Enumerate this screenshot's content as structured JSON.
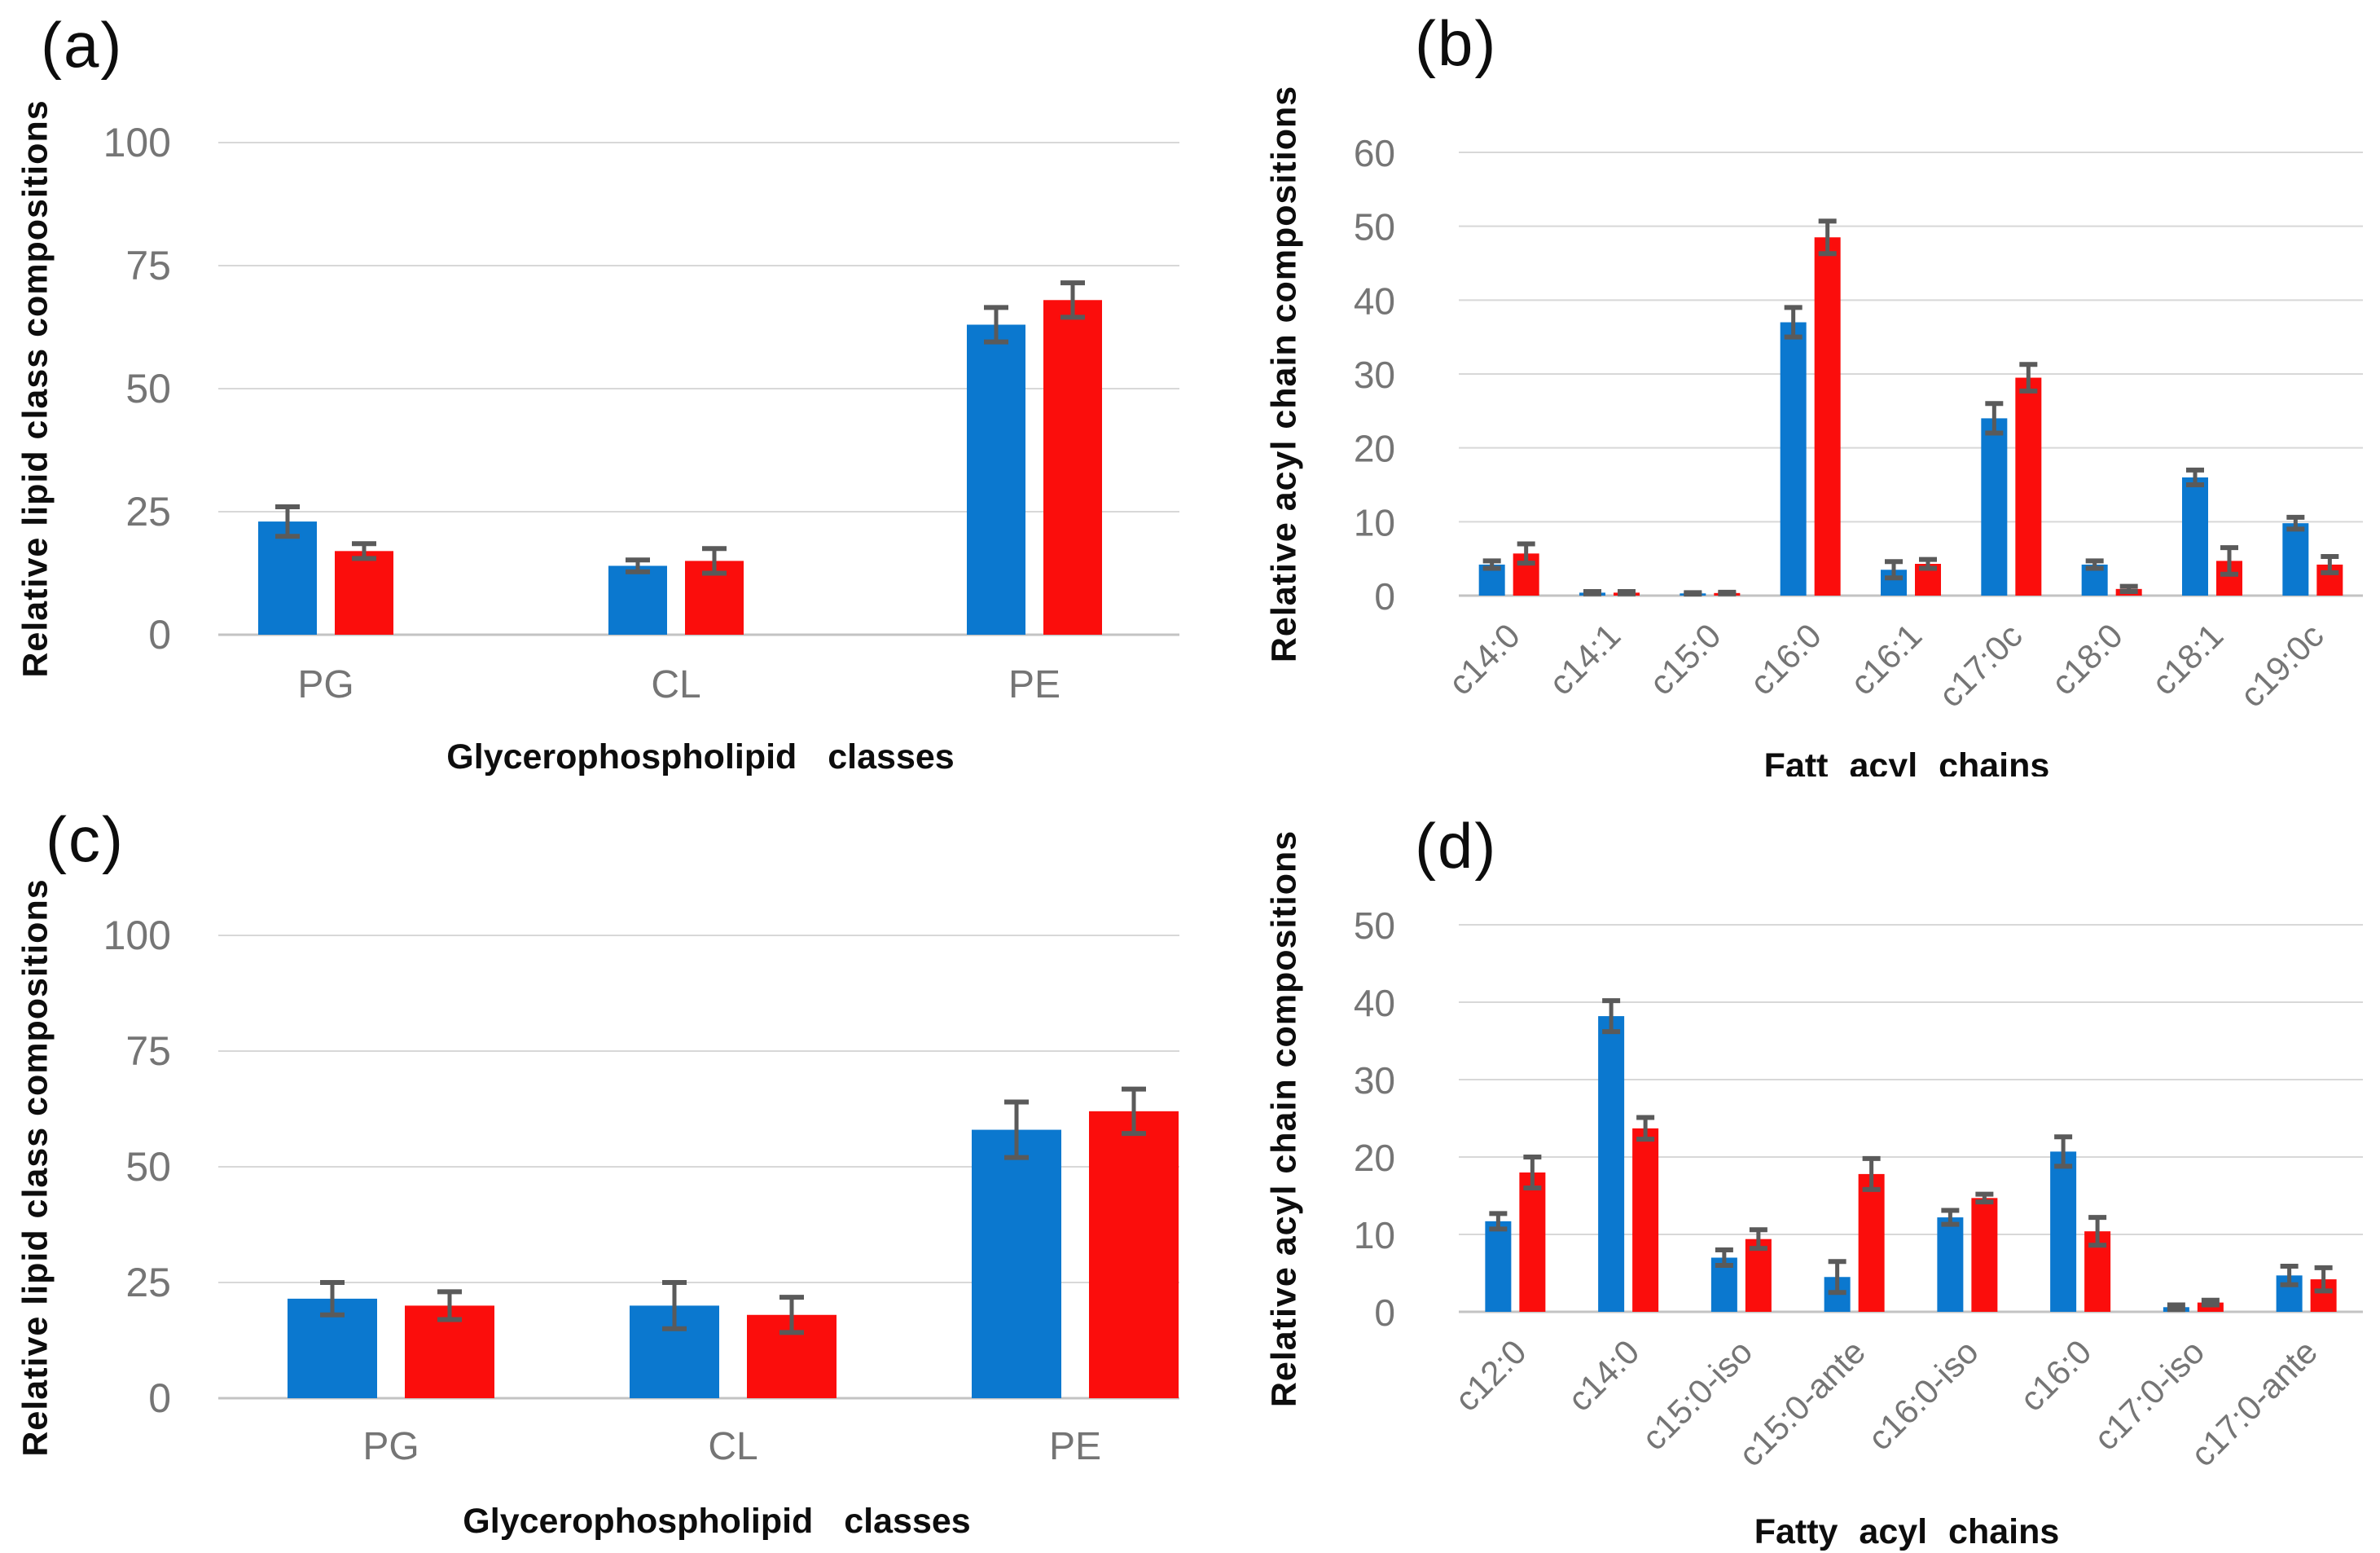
{
  "figure": {
    "background": "#ffffff"
  },
  "colors": {
    "bar_blue": "#0b78cf",
    "bar_red": "#fb0d0c",
    "error_bar": "#5a5a5a",
    "gridline": "#d8d8d8",
    "baseline": "#c3c3c3",
    "tick_text": "#757575",
    "axis_title_text": "#0d0d0d"
  },
  "chart_data": [
    {
      "id": "a",
      "panel_label": "(a)",
      "type": "bar",
      "title": "",
      "ylabel": "Relative lipid class compositions",
      "xlabel": "Glycerophospholipid classes",
      "ylim": [
        0,
        100
      ],
      "yticks": [
        0,
        25,
        50,
        75,
        100
      ],
      "grid": true,
      "legend": "none",
      "rotate_xticks": false,
      "categories": [
        "PG",
        "CL",
        "PE"
      ],
      "series": [
        {
          "name": "blue",
          "color": "#0b78cf",
          "values": [
            23,
            14,
            63
          ],
          "errors": [
            3,
            1.2,
            3.5
          ]
        },
        {
          "name": "red",
          "color": "#fb0d0c",
          "values": [
            17,
            15,
            68
          ],
          "errors": [
            1.5,
            2.5,
            3.5
          ]
        }
      ]
    },
    {
      "id": "b",
      "panel_label": "(b)",
      "type": "bar",
      "title": "",
      "ylabel": "Relative acyl chain compositions",
      "xlabel": "Fatt acyl chains",
      "ylim": [
        0,
        60
      ],
      "yticks": [
        0,
        10,
        20,
        30,
        40,
        50,
        60
      ],
      "grid": true,
      "legend": "none",
      "rotate_xticks": true,
      "categories": [
        "c14:0",
        "c14:1",
        "c15:0",
        "c16:0",
        "c16:1",
        "c17:0c",
        "c18:0",
        "c18:1",
        "c19:0c"
      ],
      "series": [
        {
          "name": "blue",
          "color": "#0b78cf",
          "values": [
            4.2,
            0.4,
            0.3,
            37,
            3.5,
            24,
            4.2,
            16,
            9.8
          ],
          "errors": [
            0.5,
            0.15,
            0.1,
            2,
            1.1,
            2,
            0.5,
            1,
            0.8
          ]
        },
        {
          "name": "red",
          "color": "#fb0d0c",
          "values": [
            5.7,
            0.4,
            0.35,
            48.5,
            4.3,
            29.5,
            0.9,
            4.7,
            4.2
          ],
          "errors": [
            1.3,
            0.15,
            0.1,
            2.2,
            0.6,
            1.8,
            0.35,
            1.8,
            1.1
          ]
        }
      ]
    },
    {
      "id": "c",
      "panel_label": "(c)",
      "type": "bar",
      "title": "",
      "ylabel": "Relative lipid class compositions",
      "xlabel": "Glycerophospholipid classes",
      "ylim": [
        0,
        100
      ],
      "yticks": [
        0,
        25,
        50,
        75,
        100
      ],
      "grid": true,
      "legend": "none",
      "rotate_xticks": false,
      "categories": [
        "PG",
        "CL",
        "PE"
      ],
      "series": [
        {
          "name": "blue",
          "color": "#0b78cf",
          "values": [
            21.5,
            20,
            58
          ],
          "errors": [
            3.5,
            5,
            6
          ]
        },
        {
          "name": "red",
          "color": "#fb0d0c",
          "values": [
            20,
            18,
            62
          ],
          "errors": [
            3,
            3.8,
            4.8
          ]
        }
      ]
    },
    {
      "id": "d",
      "panel_label": "(d)",
      "type": "bar",
      "title": "",
      "ylabel": "Relative acyl chain compositions",
      "xlabel": "Fatty acyl chains",
      "ylim": [
        0,
        50
      ],
      "yticks": [
        0,
        10,
        20,
        30,
        40,
        50
      ],
      "grid": true,
      "legend": "none",
      "rotate_xticks": true,
      "categories": [
        "c12:0",
        "c14:0",
        "c15:0-iso",
        "c15:0-ante",
        "c16:0-iso",
        "c16:0",
        "c17:0-iso",
        "c17:0-ante"
      ],
      "series": [
        {
          "name": "blue",
          "color": "#0b78cf",
          "values": [
            11.7,
            38.2,
            7,
            4.5,
            12.2,
            20.7,
            0.6,
            4.7
          ],
          "errors": [
            1,
            2,
            1,
            2,
            0.9,
            1.9,
            0.3,
            1.2
          ]
        },
        {
          "name": "red",
          "color": "#fb0d0c",
          "values": [
            18,
            23.7,
            9.4,
            17.8,
            14.7,
            10.4,
            1.2,
            4.2
          ],
          "errors": [
            2,
            1.4,
            1.2,
            2,
            0.5,
            1.8,
            0.3,
            1.5
          ]
        }
      ]
    }
  ]
}
